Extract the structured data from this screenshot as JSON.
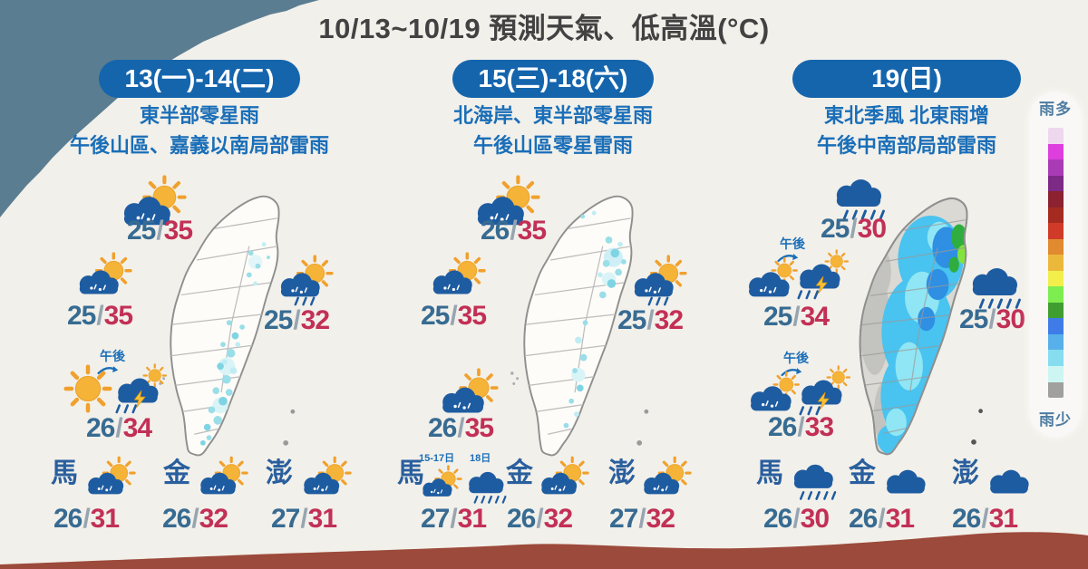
{
  "title": "10/13~10/19 預測天氣、低高溫(°C)",
  "sep": "/",
  "legend": {
    "top_label": "雨多",
    "bottom_label": "雨少",
    "colors": [
      "#eed8ee",
      "#de3ede",
      "#aa3bb6",
      "#7c2a86",
      "#8c2130",
      "#a52a20",
      "#d03b29",
      "#e18a2f",
      "#ecb83c",
      "#f2ef4b",
      "#7ded50",
      "#3f9e2f",
      "#3f7ce8",
      "#57b0e9",
      "#86ddef",
      "#cdf6f3",
      "#a0a09e"
    ]
  },
  "colors": {
    "accent_blue": "#1565ad",
    "low_temp": "#376b92",
    "high_temp": "#c23056",
    "cloud": "#1e5ca1",
    "sun": "#f5b338"
  },
  "chart_data": {
    "type": "table",
    "title": "10/13~10/19 預測天氣、低高溫(°C)",
    "legend": {
      "top": "雨多",
      "bottom": "雨少"
    },
    "panels": [
      {
        "period": "13(一)-14(二)",
        "summary": [
          "東半部零星雨",
          "午後山區、嘉義以南局部雷雨"
        ],
        "spots": [
          {
            "area": "北部",
            "weather": "sun-cloud",
            "low": 25,
            "high": 35
          },
          {
            "area": "西部",
            "weather": "sun-cloud",
            "low": 25,
            "high": 35
          },
          {
            "area": "東部",
            "weather": "sun-rain",
            "low": 25,
            "high": 32
          },
          {
            "area": "西南部",
            "weather": "sun-afternoon-thunder",
            "low": 26,
            "high": 34
          }
        ],
        "islands": [
          {
            "name": "馬",
            "weather": "sun-cloud",
            "low": 26,
            "high": 31
          },
          {
            "name": "金",
            "weather": "sun-cloud",
            "low": 26,
            "high": 32
          },
          {
            "name": "澎",
            "weather": "sun-cloud",
            "low": 27,
            "high": 31
          }
        ]
      },
      {
        "period": "15(三)-18(六)",
        "summary": [
          "北海岸、東半部零星雨",
          "午後山區零星雷雨"
        ],
        "spots": [
          {
            "area": "北部",
            "weather": "sun-cloud",
            "low": 26,
            "high": 35
          },
          {
            "area": "西部",
            "weather": "sun-cloud",
            "low": 25,
            "high": 35
          },
          {
            "area": "東部",
            "weather": "sun-rain",
            "low": 25,
            "high": 32
          },
          {
            "area": "西南部",
            "weather": "sun-cloud",
            "low": 26,
            "high": 35
          }
        ],
        "islands": [
          {
            "name": "馬",
            "weather": "sun-cloud(15-17日)/rain(18日)",
            "low": 27,
            "high": 31
          },
          {
            "name": "金",
            "weather": "sun-cloud",
            "low": 26,
            "high": 32
          },
          {
            "name": "澎",
            "weather": "sun-cloud",
            "low": 27,
            "high": 32
          }
        ]
      },
      {
        "period": "19(日)",
        "summary": [
          "東北季風 北東雨增",
          "午後中南部局部雷雨"
        ],
        "spots": [
          {
            "area": "北部",
            "weather": "rain",
            "low": 25,
            "high": 30
          },
          {
            "area": "西部",
            "weather": "cloud-sun-afternoon-thunder",
            "low": 25,
            "high": 34
          },
          {
            "area": "東部",
            "weather": "rain",
            "low": 25,
            "high": 30
          },
          {
            "area": "西南部",
            "weather": "cloud-sun-afternoon-thunder",
            "low": 26,
            "high": 33
          }
        ],
        "islands": [
          {
            "name": "馬",
            "weather": "rain",
            "low": 26,
            "high": 30
          },
          {
            "name": "金",
            "weather": "cloudy",
            "low": 26,
            "high": 31
          },
          {
            "name": "澎",
            "weather": "cloudy",
            "low": 26,
            "high": 31
          }
        ]
      }
    ]
  },
  "panels": [
    {
      "header": "13(一)-14(二)",
      "subtitle1": "東半部零星雨",
      "subtitle2": "午後山區、嘉義以南局部雷雨",
      "spots": {
        "north": {
          "low": "25",
          "high": "35"
        },
        "west": {
          "low": "25",
          "high": "35"
        },
        "east": {
          "low": "25",
          "high": "32"
        },
        "southwest": {
          "time_label": "午後",
          "low": "26",
          "high": "34"
        }
      },
      "islands": [
        {
          "name": "馬",
          "low": "26",
          "high": "31"
        },
        {
          "name": "金",
          "low": "26",
          "high": "32"
        },
        {
          "name": "澎",
          "low": "27",
          "high": "31"
        }
      ]
    },
    {
      "header": "15(三)-18(六)",
      "subtitle1": "北海岸、東半部零星雨",
      "subtitle2": "午後山區零星雷雨",
      "spots": {
        "north": {
          "low": "26",
          "high": "35"
        },
        "west": {
          "low": "25",
          "high": "35"
        },
        "east": {
          "low": "25",
          "high": "32"
        },
        "southwest": {
          "low": "26",
          "high": "35"
        }
      },
      "islands": [
        {
          "name": "馬",
          "date_label1": "15-17日",
          "date_label2": "18日",
          "low": "27",
          "high": "31"
        },
        {
          "name": "金",
          "low": "26",
          "high": "32"
        },
        {
          "name": "澎",
          "low": "27",
          "high": "32"
        }
      ]
    },
    {
      "header": "19(日)",
      "subtitle1": "東北季風 北東雨增",
      "subtitle2": "午後中南部局部雷雨",
      "spots": {
        "north": {
          "low": "25",
          "high": "30"
        },
        "west": {
          "time_label": "午後",
          "low": "25",
          "high": "34"
        },
        "east": {
          "low": "25",
          "high": "30"
        },
        "southwest": {
          "time_label": "午後",
          "low": "26",
          "high": "33"
        }
      },
      "islands": [
        {
          "name": "馬",
          "low": "26",
          "high": "30"
        },
        {
          "name": "金",
          "low": "26",
          "high": "31"
        },
        {
          "name": "澎",
          "low": "26",
          "high": "31"
        }
      ]
    }
  ]
}
